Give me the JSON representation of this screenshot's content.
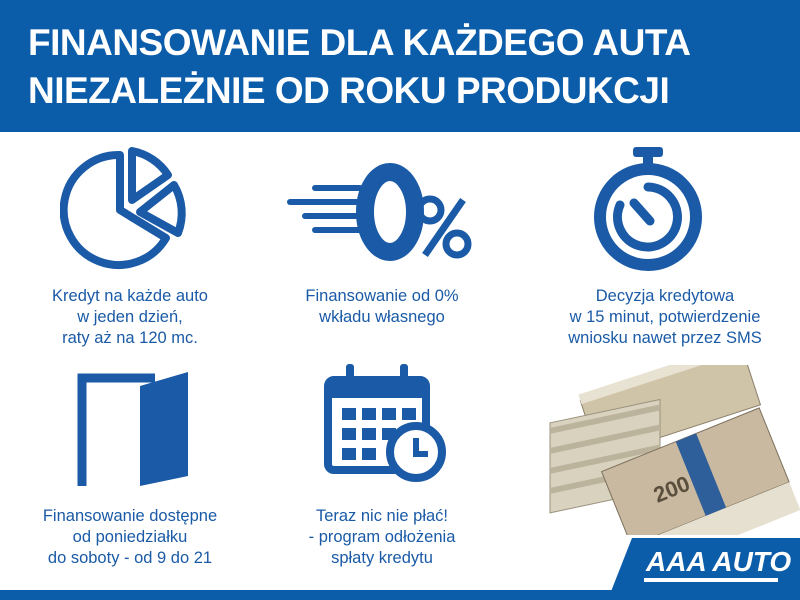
{
  "header": {
    "line1": "FINANSOWANIE DLA KAŻDEGO AUTA",
    "line2": "NIEZALEŻNIE OD ROKU PRODUKCJI"
  },
  "features": [
    {
      "icon": "pie-chart-icon",
      "lines": [
        "Kredyt na każde auto",
        "w jeden dzień,",
        "raty aż na 120 mc."
      ]
    },
    {
      "icon": "zero-percent-icon",
      "icon_text": "0%",
      "lines": [
        "Finansowanie od 0%",
        "wkładu własnego"
      ]
    },
    {
      "icon": "stopwatch-icon",
      "lines": [
        "Decyzja kredytowa",
        "w 15 minut, potwierdzenie",
        "wniosku nawet przez SMS"
      ]
    },
    {
      "icon": "open-door-icon",
      "lines": [
        "Finansowanie dostępne",
        "od poniedziałku",
        "do soboty - od 9 do 21"
      ]
    },
    {
      "icon": "calendar-clock-icon",
      "lines": [
        "Teraz nic nie płać!",
        "- program odłożenia",
        "spłaty kredytu"
      ]
    }
  ],
  "image": {
    "icon": "banknote-stacks-icon",
    "banknote_value": "200"
  },
  "logo": {
    "text": "AAA AUTO"
  },
  "colors": {
    "brand_blue": "#0b5ca9",
    "text_blue": "#1a5aa6"
  }
}
